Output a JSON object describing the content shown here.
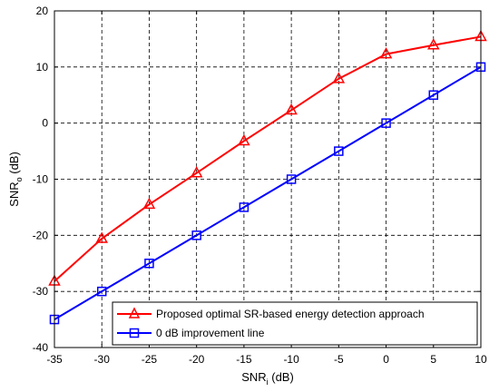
{
  "chart_data": {
    "type": "line",
    "x": [
      -35,
      -30,
      -25,
      -20,
      -15,
      -10,
      -5,
      0,
      5,
      10
    ],
    "xlim": [
      -35,
      10
    ],
    "ylim": [
      -40,
      20
    ],
    "xticks": [
      -35,
      -30,
      -25,
      -20,
      -15,
      -10,
      -5,
      0,
      5,
      10
    ],
    "yticks": [
      -40,
      -30,
      -20,
      -10,
      0,
      10,
      20
    ],
    "xlabel": "SNR",
    "xlabel_sub": "i",
    "xlabel_unit": " (dB)",
    "ylabel": "SNR",
    "ylabel_sub": "o",
    "ylabel_unit": " (dB)",
    "grid": true,
    "grid_style": "dashed",
    "legend_position": "bottom-right",
    "series": [
      {
        "name": "Proposed optimal SR-based energy detection approach",
        "marker": "triangle",
        "color": "#ff0000",
        "values": [
          -28.2,
          -20.6,
          -14.5,
          -8.9,
          -3.2,
          2.3,
          7.9,
          12.3,
          13.9,
          15.4
        ]
      },
      {
        "name": "0 dB improvement line",
        "marker": "square",
        "color": "#0000ff",
        "values": [
          -35,
          -30,
          -25,
          -20,
          -15,
          -10,
          -5,
          0,
          5,
          10
        ]
      }
    ]
  }
}
